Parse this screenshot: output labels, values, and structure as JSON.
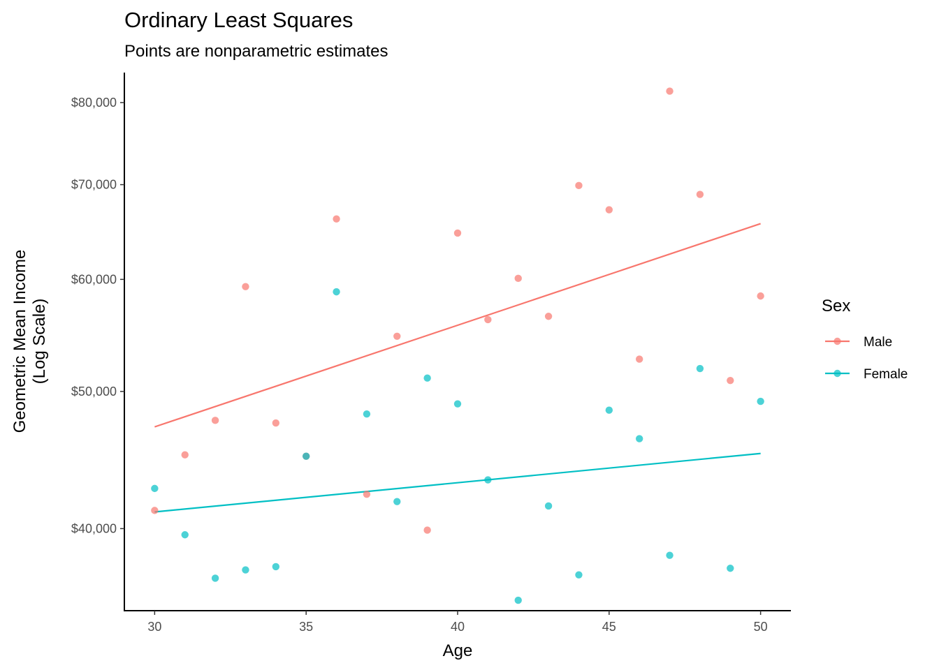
{
  "chart_data": {
    "type": "scatter",
    "title": "Ordinary Least Squares",
    "subtitle": "Points are nonparametric estimates",
    "xlabel": "Age",
    "ylabel_lines": [
      "Geometric Mean Income",
      "(Log Scale)"
    ],
    "y_scale": "log",
    "xlim": [
      29,
      51
    ],
    "ylim": [
      35000,
      84000
    ],
    "x_ticks": [
      30,
      35,
      40,
      45,
      50
    ],
    "y_ticks": [
      40000,
      50000,
      60000,
      70000,
      80000
    ],
    "y_tick_labels": [
      "$40,000",
      "$50,000",
      "$60,000",
      "$70,000",
      "$80,000"
    ],
    "grid": false,
    "legend": {
      "title": "Sex",
      "placement": "right"
    },
    "series": [
      {
        "name": "Male",
        "color": "#F8766D",
        "points": [
          [
            30,
            41200
          ],
          [
            31,
            45100
          ],
          [
            32,
            47700
          ],
          [
            33,
            59300
          ],
          [
            34,
            47500
          ],
          [
            35,
            45000
          ],
          [
            36,
            66200
          ],
          [
            37,
            42300
          ],
          [
            38,
            54700
          ],
          [
            39,
            39900
          ],
          [
            40,
            64700
          ],
          [
            41,
            56200
          ],
          [
            42,
            60100
          ],
          [
            43,
            56500
          ],
          [
            44,
            69900
          ],
          [
            45,
            67200
          ],
          [
            46,
            52700
          ],
          [
            47,
            81500
          ],
          [
            48,
            68900
          ],
          [
            49,
            50900
          ],
          [
            50,
            58400
          ]
        ],
        "fit": [
          [
            30,
            47200
          ],
          [
            50,
            65700
          ]
        ]
      },
      {
        "name": "Female",
        "color": "#00BFC4",
        "points": [
          [
            30,
            42700
          ],
          [
            31,
            39600
          ],
          [
            32,
            36900
          ],
          [
            33,
            37400
          ],
          [
            34,
            37600
          ],
          [
            35,
            45000
          ],
          [
            36,
            58800
          ],
          [
            37,
            48200
          ],
          [
            38,
            41800
          ],
          [
            39,
            51100
          ],
          [
            40,
            49000
          ],
          [
            41,
            43300
          ],
          [
            42,
            35600
          ],
          [
            43,
            41500
          ],
          [
            44,
            37100
          ],
          [
            45,
            48500
          ],
          [
            46,
            46300
          ],
          [
            47,
            38300
          ],
          [
            48,
            51900
          ],
          [
            49,
            37500
          ],
          [
            50,
            49200
          ]
        ],
        "fit": [
          [
            30,
            41100
          ],
          [
            50,
            45200
          ]
        ]
      }
    ]
  }
}
